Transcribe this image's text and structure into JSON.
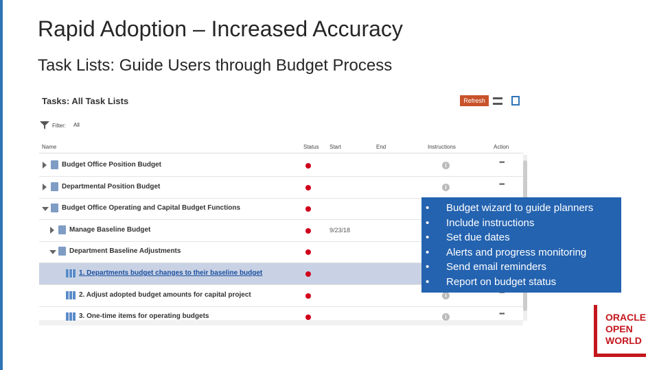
{
  "title": "Rapid Adoption – Increased Accuracy",
  "subtitle": "Task Lists:  Guide Users through Budget Process",
  "panel": {
    "title": "Tasks: All Task Lists",
    "refresh": "Refresh",
    "filter_label": "Filter:",
    "filter_value": "All",
    "columns": [
      "Name",
      "Status",
      "Start",
      "End",
      "Instructions",
      "Action"
    ],
    "rows": [
      {
        "name": "Budget Office Position Budget"
      },
      {
        "name": "Departmental Position Budget"
      },
      {
        "name": "Budget Office Operating and Capital Budget Functions"
      },
      {
        "name": "Manage Baseline Budget",
        "start": "9/23/18"
      },
      {
        "name": "Department Baseline Adjustments"
      },
      {
        "name": "1. Departments budget changes to their baseline budget"
      },
      {
        "name": "2. Adjust adopted budget amounts for capital project"
      },
      {
        "name": "3. One-time items for operating budgets"
      }
    ]
  },
  "callout": {
    "items": [
      "Budget wizard to guide planners",
      "Include instructions",
      "Set due dates",
      "Alerts and progress monitoring",
      "Send email reminders",
      "Report on budget status"
    ]
  },
  "logo": {
    "lines": [
      "ORACLE",
      "OPEN",
      "WORLD"
    ]
  }
}
